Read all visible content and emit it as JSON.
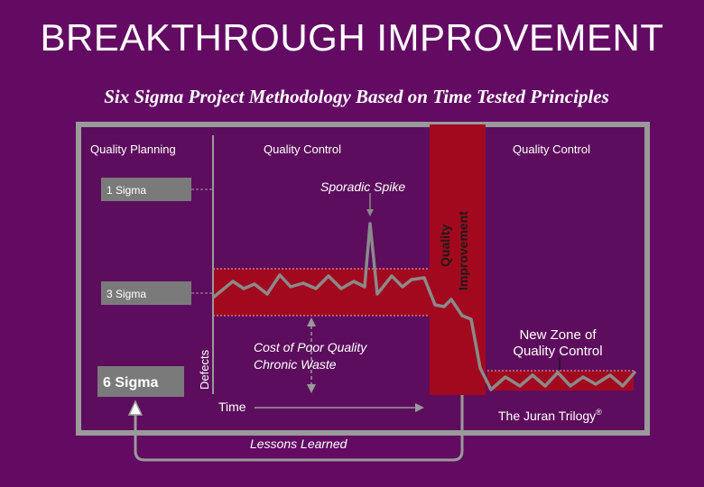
{
  "slide": {
    "title": "BREAKTHROUGH IMPROVEMENT",
    "subtitle": "Six Sigma Project Methodology Based on Time Tested Principles"
  },
  "diagram": {
    "labels": {
      "quality_planning": "Quality Planning",
      "quality_control_left": "Quality Control",
      "quality_control_right": "Quality Control",
      "quality_improvement_1": "Quality",
      "quality_improvement_2": "Improvement",
      "one_sigma": "1 Sigma",
      "three_sigma": "3 Sigma",
      "six_sigma": "6 Sigma",
      "sporadic_spike": "Sporadic Spike",
      "cost_line_1": "Cost of Poor Quality",
      "cost_line_2": "Chronic Waste",
      "new_zone_1": "New Zone of",
      "new_zone_2": "Quality Control",
      "defects_axis": "Defects",
      "time_axis": "Time",
      "lessons_learned": "Lessons Learned",
      "juran_trilogy": "The Juran Trilogy",
      "registered_mark": "®"
    },
    "colors": {
      "background": "#630a63",
      "panel": "#5d0d5d",
      "band": "#a3091e",
      "improvement_bar": "#a3091e",
      "line": "#8a8a8a",
      "text_light": "#ffffff",
      "text_dark": "#1a1a1a"
    }
  }
}
